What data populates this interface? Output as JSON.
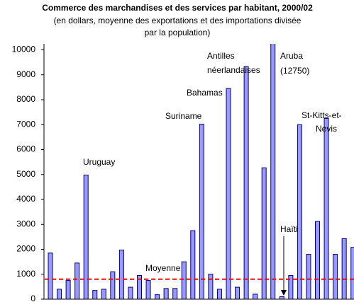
{
  "chart_data": {
    "type": "bar",
    "title": "Commerce des marchandises et des services par habitant,  2000/02",
    "subtitle": [
      "(en dollars, moyenne des exportations et des importations divisée",
      "par la population)"
    ],
    "categories": [
      null,
      null,
      null,
      null,
      null,
      null,
      null,
      null,
      null,
      null,
      null,
      null,
      null,
      null,
      null,
      null,
      null,
      null,
      null,
      null,
      null,
      null,
      null,
      null,
      null,
      null,
      null,
      null,
      null,
      null,
      null,
      null,
      null,
      null,
      null
    ],
    "values": [
      1850,
      400,
      750,
      1450,
      4980,
      350,
      400,
      1100,
      1970,
      480,
      950,
      750,
      180,
      430,
      430,
      1500,
      2750,
      7020,
      1000,
      400,
      8450,
      480,
      9330,
      200,
      5270,
      12750,
      100,
      950,
      7000,
      1800,
      3120,
      7250,
      1800,
      2430,
      2080
    ],
    "value_labels": [
      null,
      null,
      null,
      null,
      null,
      null,
      null,
      null,
      null,
      null,
      null,
      null,
      null,
      null,
      null,
      null,
      null,
      null,
      null,
      null,
      null,
      null,
      null,
      null,
      null,
      "(12750)",
      null,
      null,
      null,
      null,
      null,
      null,
      null,
      null,
      null
    ],
    "color": "#9999ff",
    "ylim": [
      0,
      10000
    ],
    "yticks": [
      0,
      1000,
      2000,
      3000,
      4000,
      5000,
      6000,
      7000,
      8000,
      9000,
      10000
    ],
    "reference_line": {
      "label": "Moyenne",
      "value": 800,
      "color": "#ff0000"
    },
    "annotations": [
      {
        "lines": [
          "Uruguay"
        ]
      },
      {
        "lines": [
          "Suriname"
        ]
      },
      {
        "lines": [
          "Bahamas"
        ]
      },
      {
        "lines": [
          "Antilles",
          "néerlandaises"
        ]
      },
      {
        "lines": [
          "Aruba"
        ]
      },
      {
        "lines": [
          "Haïti"
        ]
      },
      {
        "lines": [
          "St-Kitts-et-",
          "Nevis"
        ]
      }
    ]
  }
}
